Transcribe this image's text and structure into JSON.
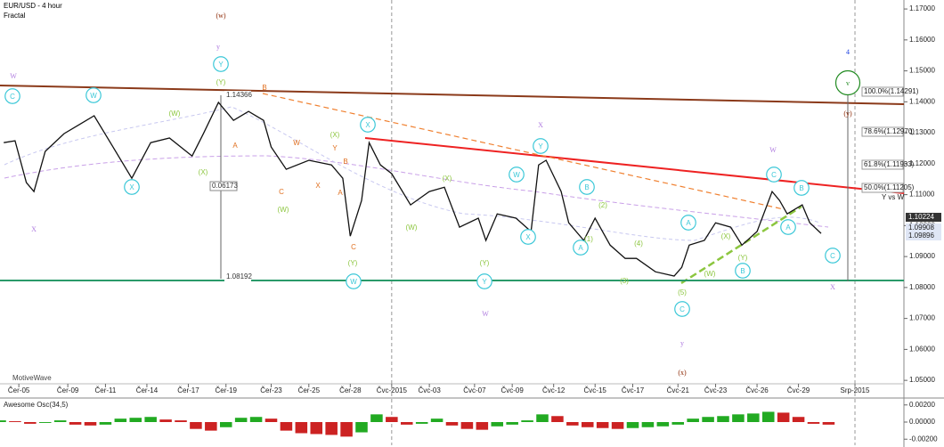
{
  "chart_data": [
    {
      "type": "line",
      "title": "EUR/USD - 4 hour",
      "subtitle": "Fractal",
      "watermark": "MotiveWave",
      "series": [
        {
          "name": "EUR/USD",
          "color": "#111111",
          "x": [
            1,
            4,
            7,
            9,
            12,
            17,
            21,
            25,
            30,
            35,
            40,
            45,
            51,
            54,
            58,
            62,
            66,
            70,
            72,
            76,
            82,
            88,
            91,
            93,
            96,
            98,
            101,
            104,
            109,
            114,
            118,
            122,
            127,
            129,
            132,
            137,
            141,
            143,
            145,
            149,
            151,
            155,
            158,
            162,
            166,
            169,
            174,
            179,
            181,
            183,
            187,
            190,
            194,
            197,
            201,
            205,
            207,
            209,
            213,
            215,
            218
          ],
          "values": [
            1.1268,
            1.1274,
            1.1139,
            1.111,
            1.124,
            1.1297,
            1.1326,
            1.1355,
            1.1254,
            1.1153,
            1.1268,
            1.1283,
            1.1225,
            1.1297,
            1.1398,
            1.134,
            1.1369,
            1.134,
            1.1254,
            1.1182,
            1.1211,
            1.1196,
            1.1153,
            1.0966,
            1.1081,
            1.1268,
            1.1196,
            1.1168,
            1.1067,
            1.111,
            1.1124,
            1.0995,
            1.1024,
            1.0952,
            1.1038,
            1.1024,
            1.0981,
            1.1196,
            1.1211,
            1.111,
            1.1009,
            1.0952,
            1.1024,
            1.0937,
            1.0894,
            1.0894,
            1.0851,
            1.0837,
            1.0865,
            1.0937,
            1.0952,
            1.1009,
            1.0995,
            1.0937,
            1.0981,
            1.111,
            1.1081,
            1.1038,
            1.1067,
            1.1009,
            1.0975
          ]
        }
      ],
      "xlim": [
        0,
        240
      ],
      "xticks": [
        {
          "value": 5,
          "label": "Čer-05"
        },
        {
          "value": 18,
          "label": "Čer-09"
        },
        {
          "value": 28,
          "label": "Čer-11"
        },
        {
          "value": 39,
          "label": "Čer-14"
        },
        {
          "value": 50,
          "label": "Čer-17"
        },
        {
          "value": 60,
          "label": "Čer-19"
        },
        {
          "value": 72,
          "label": "Čer-23"
        },
        {
          "value": 82,
          "label": "Čer-25"
        },
        {
          "value": 93,
          "label": "Čer-28"
        },
        {
          "value": 104,
          "label": "Čvc-2015"
        },
        {
          "value": 114,
          "label": "Čvc-03"
        },
        {
          "value": 126,
          "label": "Čvc-07"
        },
        {
          "value": 136,
          "label": "Čvc-09"
        },
        {
          "value": 147,
          "label": "Čvc-12"
        },
        {
          "value": 158,
          "label": "Čvc-15"
        },
        {
          "value": 168,
          "label": "Čvc-17"
        },
        {
          "value": 180,
          "label": "Čvc-21"
        },
        {
          "value": 190,
          "label": "Čvc-23"
        },
        {
          "value": 201,
          "label": "Čvc-26"
        },
        {
          "value": 212,
          "label": "Čvc-29"
        },
        {
          "value": 227,
          "label": "Srp-2015"
        }
      ],
      "ylim": [
        1.0463,
        1.1729
      ],
      "yticks": [
        {
          "value": 1.05,
          "label": "1.05000"
        },
        {
          "value": 1.06,
          "label": "1.06000"
        },
        {
          "value": 1.07,
          "label": "1.07000"
        },
        {
          "value": 1.08,
          "label": "1.08000"
        },
        {
          "value": 1.09,
          "label": "1.09000"
        },
        {
          "value": 1.1,
          "label": "1.10000"
        },
        {
          "value": 1.11,
          "label": "1.11000"
        },
        {
          "value": 1.12,
          "label": "1.12000"
        },
        {
          "value": 1.13,
          "label": "1.13000"
        },
        {
          "value": 1.14,
          "label": "1.14000"
        },
        {
          "value": 1.15,
          "label": "1.15000"
        },
        {
          "value": 1.16,
          "label": "1.16000"
        },
        {
          "value": 1.17,
          "label": "1.17000"
        }
      ],
      "fib_levels": [
        "100.0%(1.14291)",
        "78.6%(1.12970)",
        "61.8%(1.11933)",
        "50.0%(1.11205)",
        "Y vs W"
      ],
      "price_tags": [
        "1.10224",
        "1.09908",
        "1.09896"
      ],
      "measure_labels": [
        "1.14366",
        "0.06173",
        "1.08192"
      ],
      "annotations": [
        {
          "text": "W",
          "color": "#b07de0"
        },
        {
          "text": "C",
          "color": "#3cc8d8"
        },
        {
          "text": "X",
          "color": "#b07de0"
        },
        {
          "text": "W",
          "color": "#3cc8d8"
        },
        {
          "text": "X",
          "color": "#3cc8d8"
        },
        {
          "text": "(W)",
          "color": "#8cc63f"
        },
        {
          "text": "(X)",
          "color": "#8cc63f"
        },
        {
          "text": "y",
          "color": "#b07de0"
        },
        {
          "text": "Y",
          "color": "#3cc8d8"
        },
        {
          "text": "(Y)",
          "color": "#8cc63f"
        },
        {
          "text": "(w)",
          "color": "#8b2500"
        },
        {
          "text": "B",
          "color": "#e07020"
        },
        {
          "text": "A",
          "color": "#e07020"
        },
        {
          "text": "C",
          "color": "#e07020"
        },
        {
          "text": "(W)",
          "color": "#8cc63f"
        },
        {
          "text": "W",
          "color": "#e07020"
        },
        {
          "text": "X",
          "color": "#e07020"
        },
        {
          "text": "Y",
          "color": "#e07020"
        },
        {
          "text": "B",
          "color": "#e07020"
        },
        {
          "text": "A",
          "color": "#e07020"
        },
        {
          "text": "(X)",
          "color": "#8cc63f"
        },
        {
          "text": "X",
          "color": "#3cc8d8"
        },
        {
          "text": "C",
          "color": "#e07020"
        },
        {
          "text": "(Y)",
          "color": "#8cc63f"
        },
        {
          "text": "W",
          "color": "#3cc8d8"
        },
        {
          "text": "(W)",
          "color": "#8cc63f"
        },
        {
          "text": "(X)",
          "color": "#8cc63f"
        },
        {
          "text": "(Y)",
          "color": "#8cc63f"
        },
        {
          "text": "Y",
          "color": "#3cc8d8"
        },
        {
          "text": "W",
          "color": "#b07de0"
        },
        {
          "text": "X",
          "color": "#3cc8d8"
        },
        {
          "text": "W",
          "color": "#3cc8d8"
        },
        {
          "text": "X",
          "color": "#b07de0"
        },
        {
          "text": "Y",
          "color": "#3cc8d8"
        },
        {
          "text": "B",
          "color": "#3cc8d8"
        },
        {
          "text": "(2)",
          "color": "#8cc63f"
        },
        {
          "text": "A",
          "color": "#3cc8d8"
        },
        {
          "text": "(1)",
          "color": "#8cc63f"
        },
        {
          "text": "(4)",
          "color": "#8cc63f"
        },
        {
          "text": "(3)",
          "color": "#8cc63f"
        },
        {
          "text": "(5)",
          "color": "#8cc63f"
        },
        {
          "text": "C",
          "color": "#3cc8d8"
        },
        {
          "text": "y",
          "color": "#b07de0"
        },
        {
          "text": "(x)",
          "color": "#8b2500"
        },
        {
          "text": "A",
          "color": "#3cc8d8"
        },
        {
          "text": "(W)",
          "color": "#8cc63f"
        },
        {
          "text": "(X)",
          "color": "#8cc63f"
        },
        {
          "text": "(Y)",
          "color": "#8cc63f"
        },
        {
          "text": "B",
          "color": "#3cc8d8"
        },
        {
          "text": "W",
          "color": "#b07de0"
        },
        {
          "text": "C",
          "color": "#3cc8d8"
        },
        {
          "text": "B",
          "color": "#3cc8d8"
        },
        {
          "text": "A",
          "color": "#3cc8d8"
        },
        {
          "text": "C",
          "color": "#3cc8d8"
        },
        {
          "text": "X",
          "color": "#b07de0"
        },
        {
          "text": "4",
          "color": "#1a3fe0"
        },
        {
          "text": "v",
          "color": "#228b22"
        },
        {
          "text": "(y)",
          "color": "#8b2500"
        }
      ]
    },
    {
      "type": "bar",
      "title": "Awesome Osc(34,5)",
      "up_color": "#22aa22",
      "down_color": "#cc2222",
      "x": [
        0,
        4,
        8,
        12,
        16,
        20,
        24,
        28,
        32,
        36,
        40,
        44,
        48,
        52,
        56,
        60,
        64,
        68,
        72,
        76,
        80,
        84,
        88,
        92,
        96,
        100,
        104,
        108,
        112,
        116,
        120,
        124,
        128,
        132,
        136,
        140,
        144,
        148,
        152,
        156,
        160,
        164,
        168,
        172,
        176,
        180,
        184,
        188,
        192,
        196,
        200,
        204,
        208,
        212,
        216,
        220
      ],
      "values": [
        0.0002,
        0.0001,
        -0.0002,
        -0.0001,
        0.0002,
        -0.0003,
        -0.0004,
        -0.0003,
        0.0004,
        0.0005,
        0.0006,
        0.0003,
        0.0002,
        -0.0008,
        -0.001,
        -0.0006,
        0.0005,
        0.0006,
        0.0004,
        -0.001,
        -0.0013,
        -0.0014,
        -0.0015,
        -0.0017,
        -0.0012,
        0.0009,
        0.0006,
        -0.0003,
        -0.0002,
        0.0004,
        -0.0004,
        -0.0008,
        -0.0009,
        -0.0005,
        -0.0003,
        0.0002,
        0.0009,
        0.0007,
        -0.0004,
        -0.0006,
        -0.0007,
        -0.0008,
        -0.0007,
        -0.0006,
        -0.0005,
        -0.0003,
        0.0004,
        0.0006,
        0.0007,
        0.0009,
        0.001,
        0.0012,
        0.0011,
        0.0006,
        -0.0002,
        -0.0003
      ],
      "xlim": [
        0,
        240
      ],
      "ylim": [
        -0.0026,
        0.0026
      ],
      "yticks": [
        {
          "value": 0.002,
          "label": "0.00200"
        },
        {
          "value": 0,
          "label": "0.00000"
        },
        {
          "value": -0.002,
          "label": "-0.00200"
        }
      ]
    }
  ]
}
